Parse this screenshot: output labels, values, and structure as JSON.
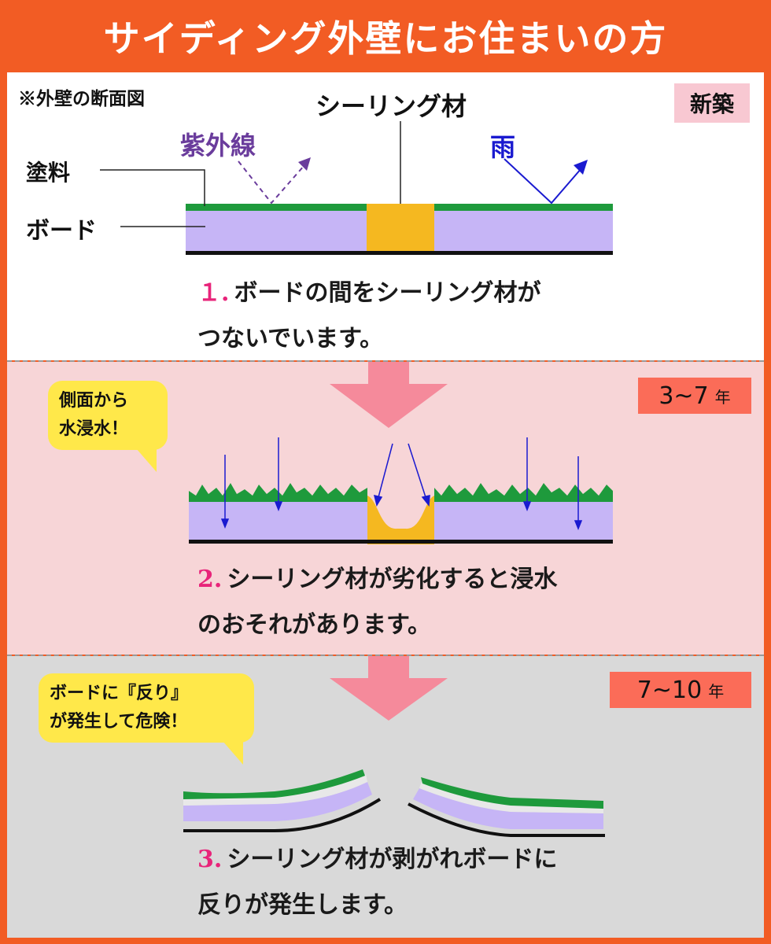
{
  "header": {
    "title": "サイディング外壁にお住まいの方"
  },
  "panel1": {
    "note": "※外壁の断面図",
    "tag": "新築",
    "labels": {
      "sealing": "シーリング材",
      "uv": "紫外線",
      "rain": "雨",
      "paint": "塗料",
      "board": "ボード"
    },
    "caption_num": "１.",
    "caption_line1": "ボードの間をシーリング材が",
    "caption_line2": "つないでいます。"
  },
  "panel2": {
    "tag_years": "3~7",
    "tag_unit": "年",
    "bubble_line1": "側面から",
    "bubble_line2": "水浸水！",
    "caption_num": "2.",
    "caption_line1": "シーリング材が劣化すると浸水",
    "caption_line2": "のおそれがあります。"
  },
  "panel3": {
    "tag_years": "7~10",
    "tag_unit": "年",
    "bubble_line1": "ボードに『反り』",
    "bubble_line2": "が発生して危険！",
    "caption_num": "3.",
    "caption_line1": "シーリング材が剥がれボードに",
    "caption_line2": "反りが発生します。"
  },
  "colors": {
    "background_orange": "#f25c24",
    "paint_green": "#1e9a3c",
    "board_purple": "#c6b5f6",
    "sealant_orange": "#f5b820",
    "arrow_pink": "#f58a9b",
    "rain_blue": "#1a1ad0",
    "uv_purple": "#6a3c9c",
    "number_pink": "#e8247a"
  }
}
